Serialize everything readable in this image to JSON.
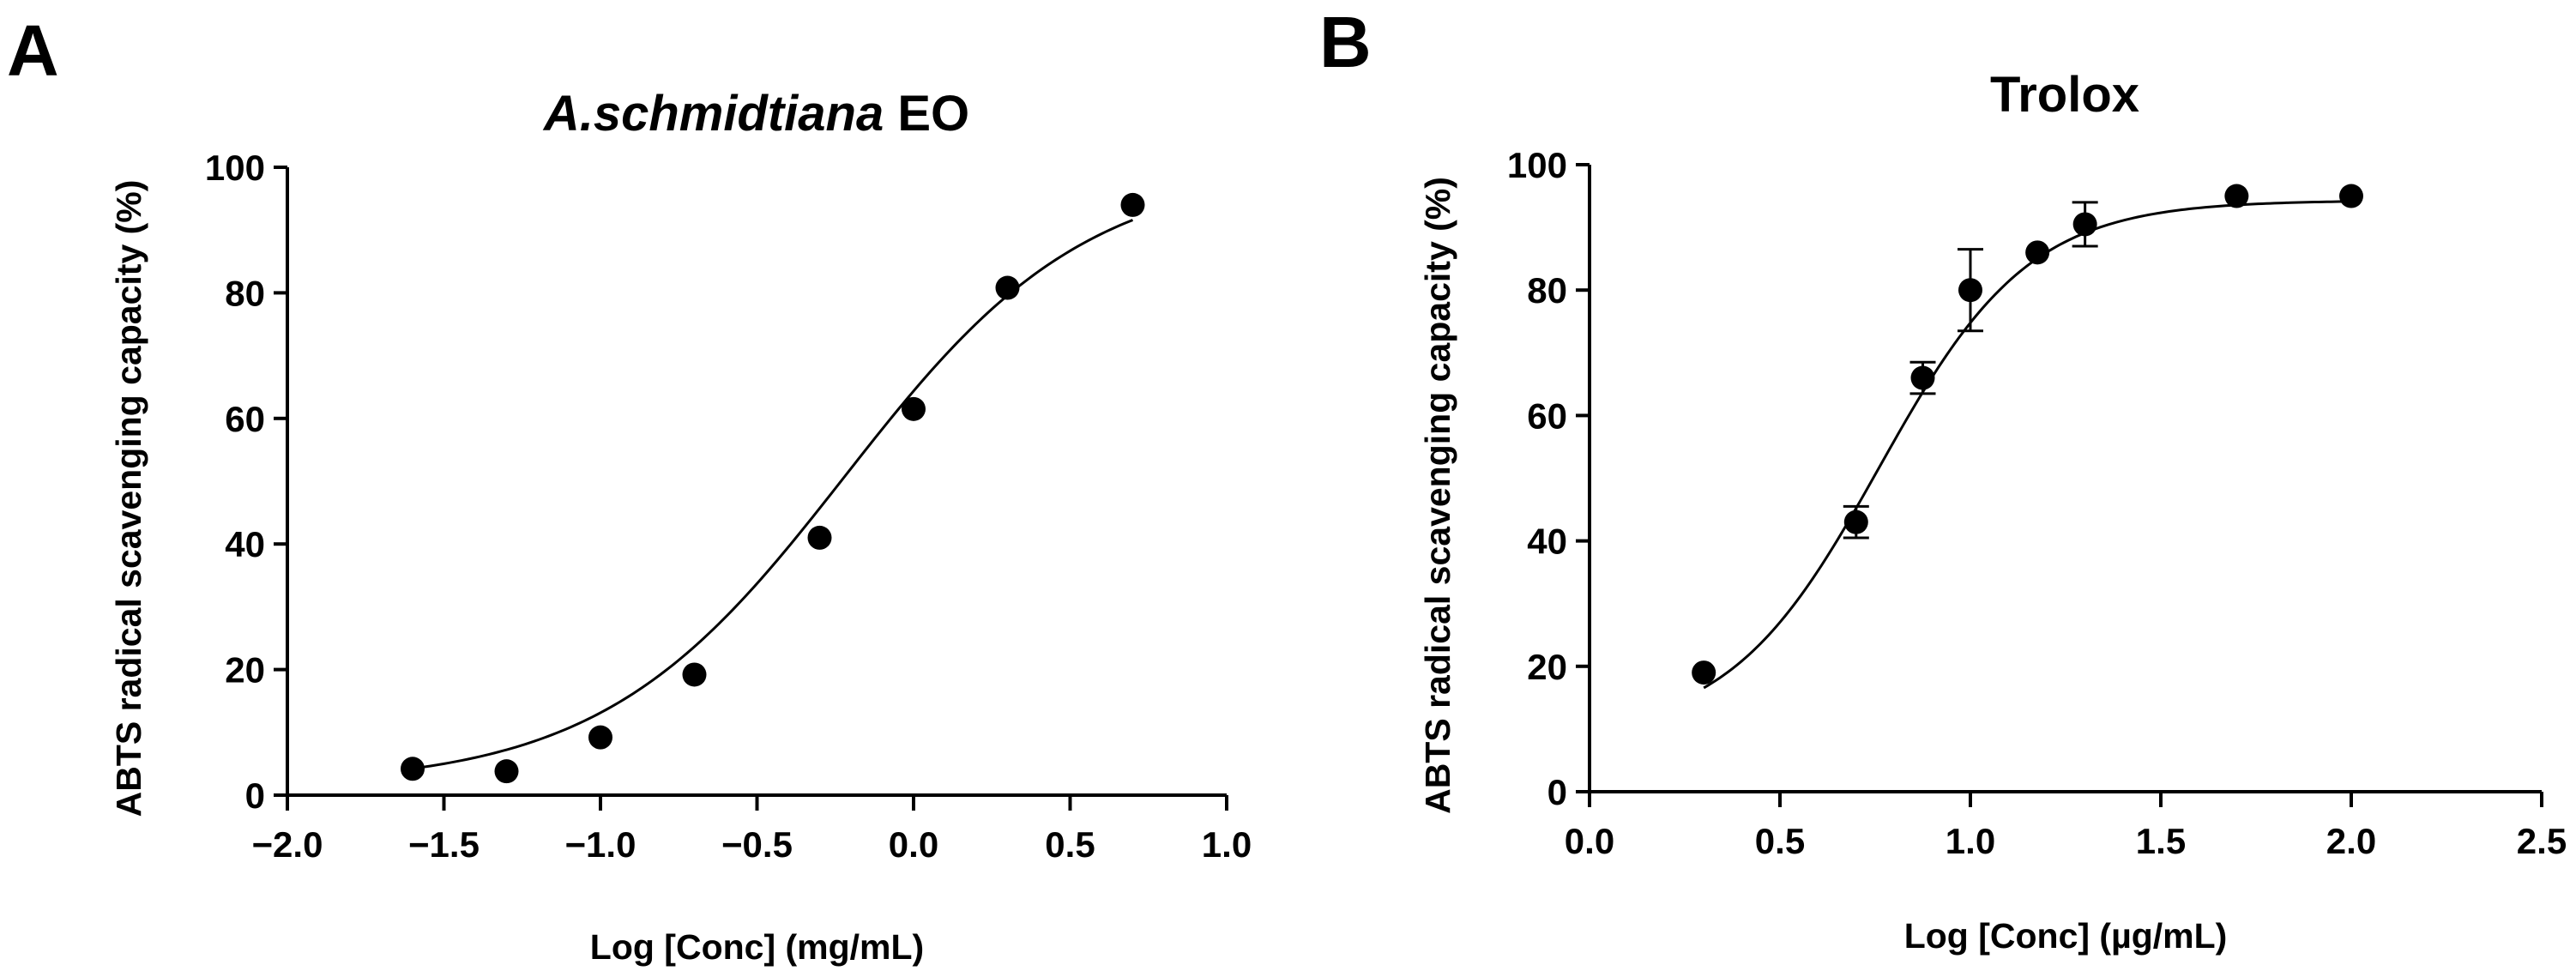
{
  "chart_data": [
    {
      "panel_label": "A",
      "type": "scatter",
      "title": "A.schmidtiana EO",
      "title_italic_part": "A.schmidtiana",
      "title_plain_part": " EO",
      "xlabel": "Log [Conc] (mg/mL)",
      "ylabel": "ABTS radical scavenging capacity (%)",
      "xlim": [
        -2.0,
        1.0
      ],
      "ylim": [
        0,
        100
      ],
      "xticks": [
        -2.0,
        -1.5,
        -1.0,
        -0.5,
        0.0,
        0.5,
        1.0
      ],
      "xtick_labels": [
        "−2.0",
        "−1.5",
        "−1.0",
        "−0.5",
        "0.0",
        "0.5",
        "1.0"
      ],
      "yticks": [
        0,
        20,
        40,
        60,
        80,
        100
      ],
      "ytick_labels": [
        "0",
        "20",
        "40",
        "60",
        "80",
        "100"
      ],
      "grid": false,
      "series": [
        {
          "name": "data",
          "x": [
            -1.6,
            -1.3,
            -1.0,
            -0.7,
            -0.3,
            0.0,
            0.3,
            0.7
          ],
          "y": [
            4.2,
            3.8,
            9.2,
            19.2,
            41.0,
            61.5,
            80.8,
            94.0
          ],
          "error": [
            0,
            0,
            0,
            0,
            0,
            0,
            0,
            0
          ]
        }
      ],
      "fit_curve": {
        "model": "four-parameter logistic",
        "bottom": 1.5,
        "top": 100,
        "log_ec50": -0.22,
        "hill_slope": 1.12,
        "x_range": [
          -1.6,
          0.7
        ]
      }
    },
    {
      "panel_label": "B",
      "type": "scatter",
      "title": "Trolox",
      "xlabel": "Log [Conc] (µg/mL)",
      "ylabel": "ABTS radical scavenging capacity (%)",
      "xlim": [
        0.0,
        2.5
      ],
      "ylim": [
        0,
        100
      ],
      "xticks": [
        0.0,
        0.5,
        1.0,
        1.5,
        2.0,
        2.5
      ],
      "xtick_labels": [
        "0.0",
        "0.5",
        "1.0",
        "1.5",
        "2.0",
        "2.5"
      ],
      "yticks": [
        0,
        20,
        40,
        60,
        80,
        100
      ],
      "ytick_labels": [
        "0",
        "20",
        "40",
        "60",
        "80",
        "100"
      ],
      "grid": false,
      "series": [
        {
          "name": "data",
          "x": [
            0.3,
            0.7,
            0.875,
            1.0,
            1.176,
            1.301,
            1.699,
            2.0
          ],
          "y": [
            19.0,
            43.0,
            66.0,
            80.0,
            86.0,
            90.5,
            95.0,
            95.0
          ],
          "error": [
            0,
            2.5,
            2.5,
            6.5,
            0,
            3.5,
            0,
            0
          ]
        }
      ],
      "fit_curve": {
        "model": "four-parameter logistic",
        "bottom": 9.0,
        "top": 94.3,
        "log_ec50": 0.76,
        "hill_slope": 2.2,
        "x_range": [
          0.3,
          2.0
        ]
      }
    }
  ]
}
